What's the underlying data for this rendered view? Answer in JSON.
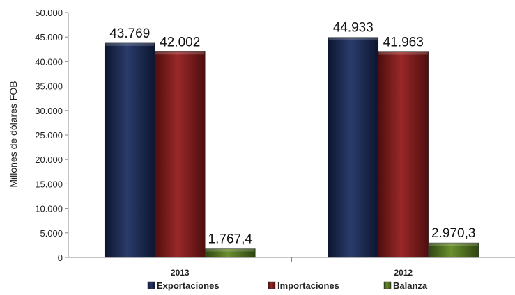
{
  "chart_data": {
    "type": "bar",
    "title": "",
    "xlabel": "",
    "ylabel": "Millones de dólares FOB",
    "ylim": [
      0,
      50000
    ],
    "yticks": [
      0,
      5000,
      10000,
      15000,
      20000,
      25000,
      30000,
      35000,
      40000,
      45000,
      50000
    ],
    "ytick_labels": [
      "0",
      "5.000",
      "10.000",
      "15.000",
      "20.000",
      "25.000",
      "30.000",
      "35.000",
      "40.000",
      "45.000",
      "50.000"
    ],
    "categories": [
      "2013",
      "2012"
    ],
    "series": [
      {
        "name": "Exportaciones",
        "color": "#1c2a4f",
        "values": [
          43769,
          44933
        ],
        "labels": [
          "43.769",
          "44.933"
        ]
      },
      {
        "name": "Importaciones",
        "color": "#7a1a1a",
        "values": [
          42002,
          41963
        ],
        "labels": [
          "42.002",
          "41.963"
        ]
      },
      {
        "name": "Balanza",
        "color": "#4a6b1e",
        "values": [
          1767.4,
          2970.3
        ],
        "labels": [
          "1.767,4",
          "2.970,3"
        ]
      }
    ],
    "grid": false,
    "legend": "bottom"
  }
}
